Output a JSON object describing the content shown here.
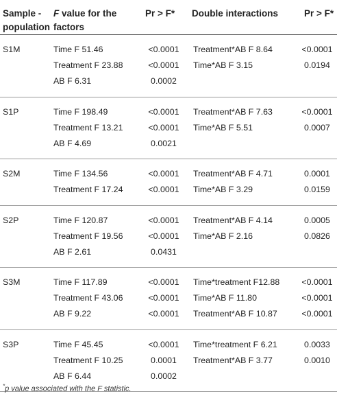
{
  "headers": {
    "col1": "Sample - population",
    "col2_italic": "F",
    "col2_rest": " value for the factors",
    "col3": "Pr > F*",
    "col4": "Double interactions",
    "col5": "Pr > F*"
  },
  "groups": [
    {
      "sample": "S1M",
      "rows": [
        {
          "factor": "Time F 51.46",
          "p": "<0.0001",
          "interaction": "Treatment*AB F 8.64",
          "p2": "<0.0001"
        },
        {
          "factor": "Treatment F 23.88",
          "p": "<0.0001",
          "interaction": "Time*AB F 3.15",
          "p2": "0.0194"
        },
        {
          "factor": "AB F 6.31",
          "p": "0.0002",
          "interaction": "",
          "p2": ""
        }
      ]
    },
    {
      "sample": "S1P",
      "rows": [
        {
          "factor": "Time F 198.49",
          "p": "<0.0001",
          "interaction": "Treatment*AB F 7.63",
          "p2": "<0.0001"
        },
        {
          "factor": "Treatment F 13.21",
          "p": "<0.0001",
          "interaction": "Time*AB F 5.51",
          "p2": "0.0007"
        },
        {
          "factor": "AB F 4.69",
          "p": "0.0021",
          "interaction": "",
          "p2": ""
        }
      ]
    },
    {
      "sample": "S2M",
      "rows": [
        {
          "factor": "Time F 134.56",
          "p": "<0.0001",
          "interaction": "Treatment*AB F 4.71",
          "p2": "0.0001"
        },
        {
          "factor": "Treatment F 17.24",
          "p": "<0.0001",
          "interaction": "Time*AB F 3.29",
          "p2": "0.0159"
        }
      ]
    },
    {
      "sample": "S2P",
      "rows": [
        {
          "factor": "Time F 120.87",
          "p": "<0.0001",
          "interaction": "Treatment*AB F 4.14",
          "p2": "0.0005"
        },
        {
          "factor": "Treatment F 19.56",
          "p": "<0.0001",
          "interaction": "Time*AB F 2.16",
          "p2": "0.0826"
        },
        {
          "factor": "AB F 2.61",
          "p": "0.0431",
          "interaction": "",
          "p2": ""
        }
      ]
    },
    {
      "sample": "S3M",
      "rows": [
        {
          "factor": "Time F 117.89",
          "p": "<0.0001",
          "interaction": "Time*treatment F12.88",
          "p2": "<0.0001"
        },
        {
          "factor": "Treatment F 43.06",
          "p": "<0.0001",
          "interaction": "Time*AB F 11.80",
          "p2": "<0.0001"
        },
        {
          "factor": "AB F 9.22",
          "p": "<0.0001",
          "interaction": "Treatment*AB F 10.87",
          "p2": "<0.0001"
        }
      ]
    },
    {
      "sample": "S3P",
      "rows": [
        {
          "factor": "Time F 45.45",
          "p": "<0.0001",
          "interaction": "Time*treatment F 6.21",
          "p2": "0.0033"
        },
        {
          "factor": "Treatment F 10.25",
          "p": "0.0001",
          "interaction": "Treatment*AB F 3.77",
          "p2": "0.0010"
        },
        {
          "factor": "AB F 6.44",
          "p": "0.0002",
          "interaction": "",
          "p2": ""
        }
      ]
    }
  ],
  "footnote": {
    "marker": "*",
    "text": "p value associated with the F statistic."
  }
}
